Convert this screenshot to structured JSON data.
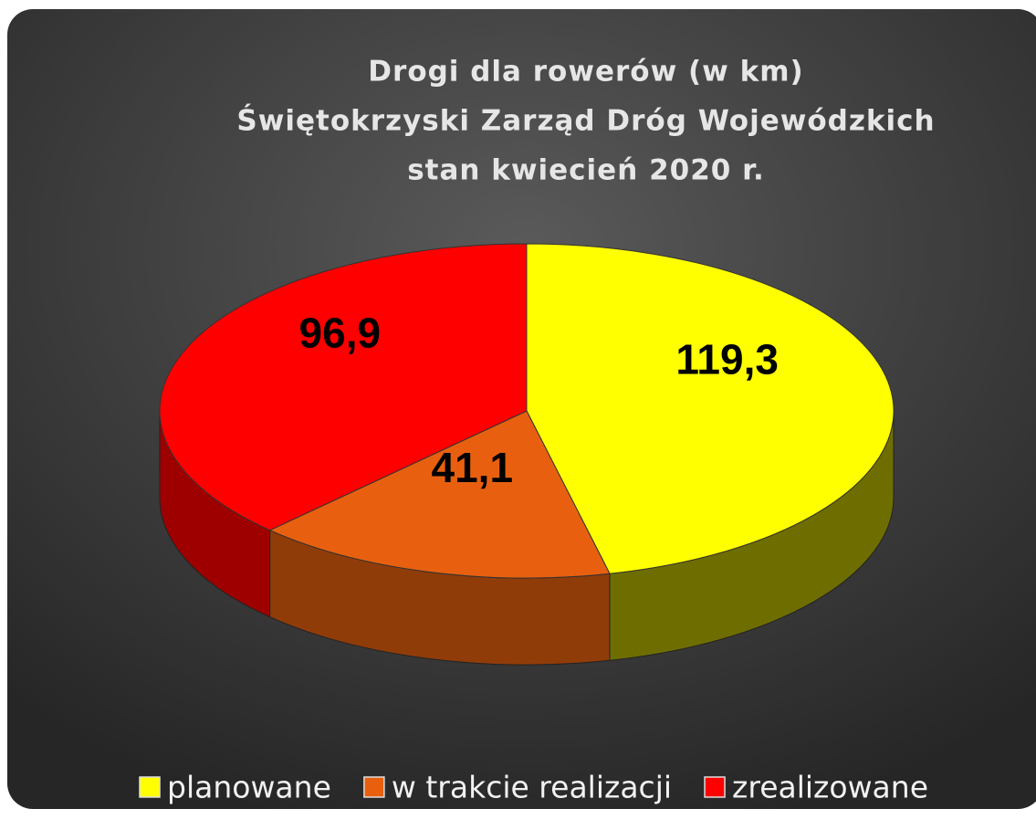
{
  "chart_data": {
    "type": "pie",
    "title": [
      "Drogi dla rowerów (w km)",
      "Świętokrzyski Zarząd Dróg Wojewódzkich",
      "stan kwiecień 2020 r."
    ],
    "categories": [
      "planowane",
      "w trakcie realizacji",
      "zrealizowane"
    ],
    "values": [
      119.3,
      41.1,
      96.9
    ],
    "value_labels": [
      "119,3",
      "41,1",
      "96,9"
    ],
    "colors": [
      "#ffff00",
      "#e8600f",
      "#ff0000"
    ],
    "legend": "bottom"
  }
}
